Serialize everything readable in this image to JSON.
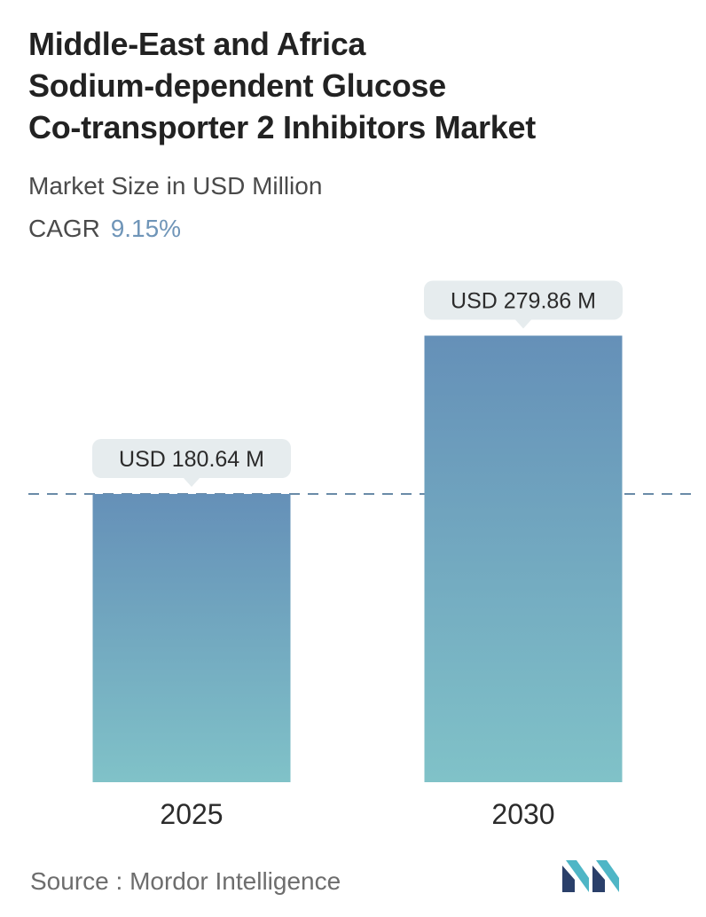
{
  "title_lines": [
    "Middle-East and Africa",
    "Sodium-dependent Glucose",
    "Co-transporter 2 Inhibitors Market"
  ],
  "subtitle": "Market Size in USD Million",
  "cagr": {
    "label": "CAGR",
    "value": "9.15%"
  },
  "chart_data": {
    "type": "bar",
    "categories": [
      "2025",
      "2030"
    ],
    "values": [
      180.64,
      279.86
    ],
    "data_labels": [
      "USD 180.64 M",
      "USD 279.86 M"
    ],
    "unit": "USD Million",
    "reference_line": 180.64,
    "grid": false,
    "colors": {
      "bar_top": "#6590b8",
      "bar_bottom": "#80c2c8",
      "callout_bg": "#e6ecee",
      "dash": "#6a8ba8"
    }
  },
  "source": {
    "label": "Source :",
    "name": "Mordor Intelligence"
  },
  "logo": {
    "name": "mordor-intelligence-logo",
    "colors": [
      "#2a3f6a",
      "#4fb6c6"
    ]
  }
}
